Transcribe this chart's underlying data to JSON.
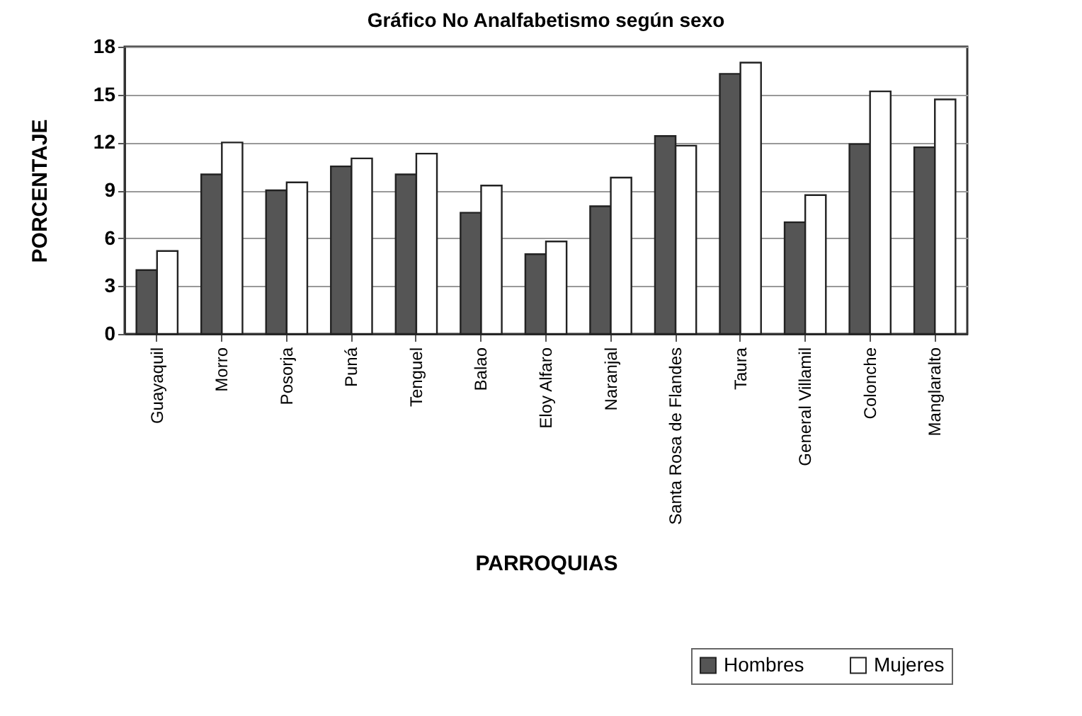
{
  "chart_data": {
    "type": "bar",
    "title": "Gráfico No Analfabetismo según sexo",
    "xlabel": "PARROQUIAS",
    "ylabel": "PORCENTAJE",
    "categories": [
      "Guayaquil",
      "Morro",
      "Posorja",
      "Puná",
      "Tenguel",
      "Balao",
      "Eloy Alfaro",
      "Naranjal",
      "Santa Rosa de Flandes",
      "Taura",
      "General Villamil",
      "Colonche",
      "Manglaralto"
    ],
    "series": [
      {
        "name": "Hombres",
        "color": "#555555",
        "values": [
          4.0,
          10.0,
          9.0,
          10.5,
          10.0,
          7.6,
          5.0,
          8.0,
          12.4,
          16.3,
          7.0,
          11.9,
          11.7
        ]
      },
      {
        "name": "Mujeres",
        "color": "#ffffff",
        "values": [
          5.2,
          12.0,
          9.5,
          11.0,
          11.3,
          9.3,
          5.8,
          9.8,
          11.8,
          17.0,
          8.7,
          15.2,
          14.7
        ]
      }
    ],
    "ylim": [
      0,
      18
    ],
    "yticks": [
      0,
      3,
      6,
      9,
      12,
      15,
      18
    ],
    "grid": "y",
    "legend": "bottom right"
  }
}
